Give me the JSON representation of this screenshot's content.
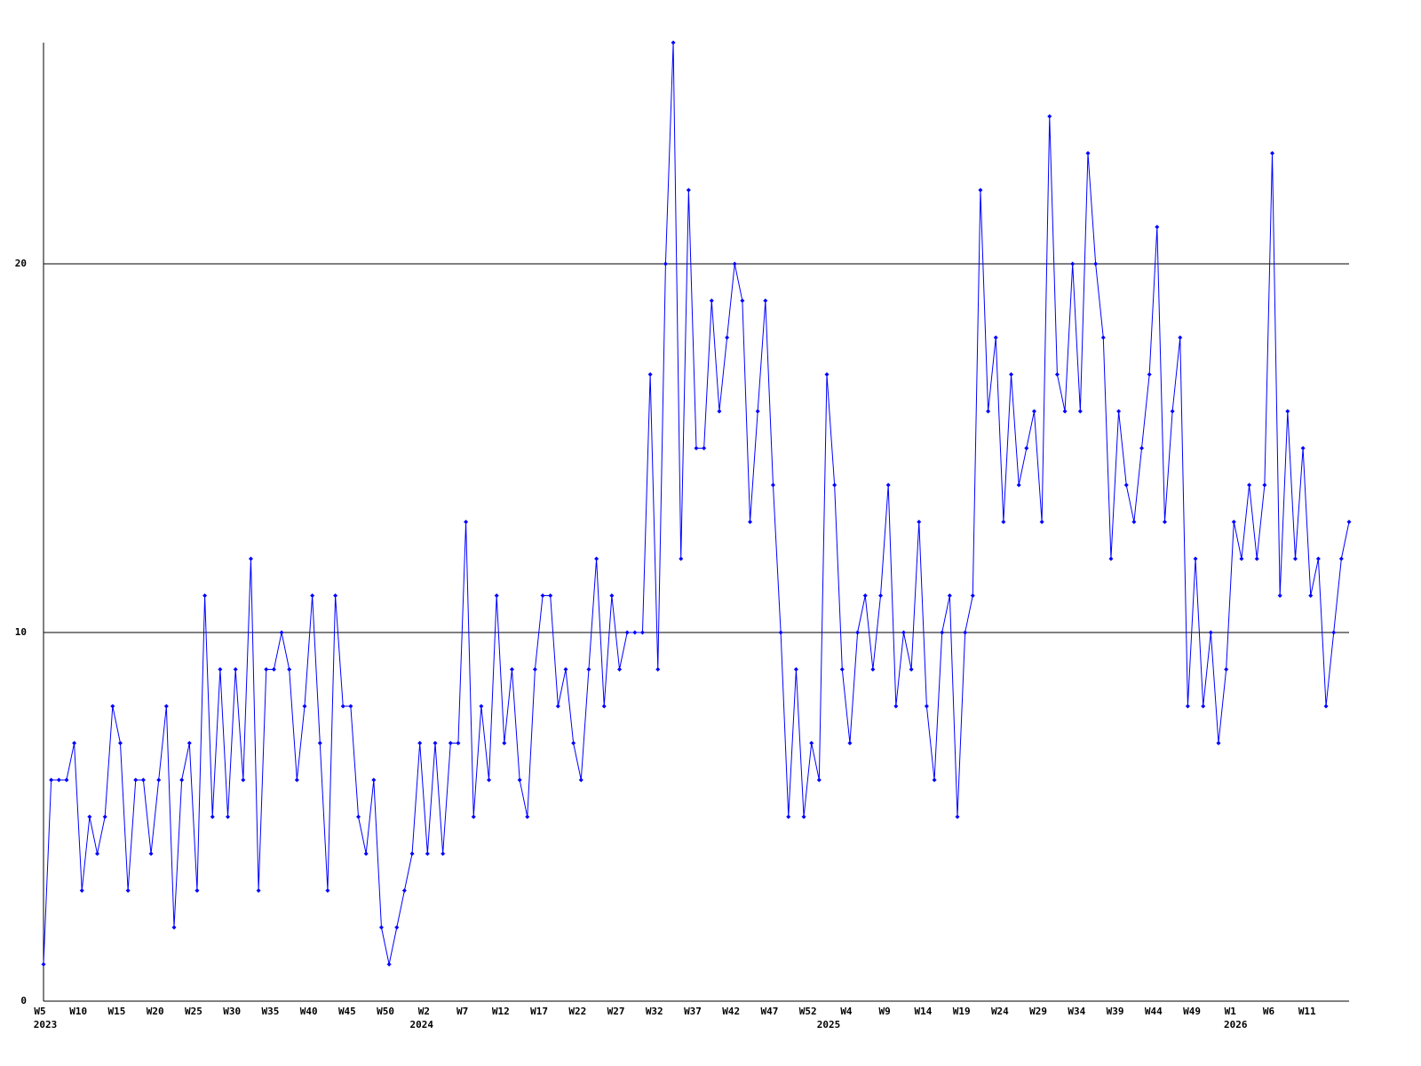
{
  "chart_data": {
    "type": "line",
    "color": "#0000ff",
    "grid": true,
    "ylim": [
      0,
      26
    ],
    "yticks": [
      0,
      10,
      20
    ],
    "categories": [
      "W5",
      null,
      null,
      null,
      null,
      "W10",
      null,
      null,
      null,
      null,
      "W15",
      null,
      null,
      null,
      null,
      "W20",
      null,
      null,
      null,
      null,
      "W25",
      null,
      null,
      null,
      null,
      "W30",
      null,
      null,
      null,
      null,
      "W35",
      null,
      null,
      null,
      null,
      "W40",
      null,
      null,
      null,
      null,
      "W45",
      null,
      null,
      null,
      null,
      "W50",
      null,
      null,
      null,
      null,
      "W2",
      null,
      null,
      null,
      null,
      "W7",
      null,
      null,
      null,
      null,
      "W12",
      null,
      null,
      null,
      null,
      "W17",
      null,
      null,
      null,
      null,
      "W22",
      null,
      null,
      null,
      null,
      "W27",
      null,
      null,
      null,
      null,
      "W32",
      null,
      null,
      null,
      null,
      "W37",
      null,
      null,
      null,
      null,
      "W42",
      null,
      null,
      null,
      null,
      "W47",
      null,
      null,
      null,
      null,
      "W52",
      null,
      null,
      null,
      null,
      "W4",
      null,
      null,
      null,
      null,
      "W9",
      null,
      null,
      null,
      null,
      "W14",
      null,
      null,
      null,
      null,
      "W19",
      null,
      null,
      null,
      null,
      "W24",
      null,
      null,
      null,
      null,
      "W29",
      null,
      null,
      null,
      null,
      "W34",
      null,
      null,
      null,
      null,
      "W39",
      null,
      null,
      null,
      null,
      "W44",
      null,
      null,
      null,
      null,
      "W49",
      null,
      null,
      null,
      null,
      "W1",
      null,
      null,
      null,
      null,
      "W6",
      null,
      null,
      null,
      null,
      "W11",
      null,
      null,
      null,
      null,
      null
    ],
    "year_labels": [
      "2023",
      null,
      null,
      null,
      null,
      null,
      null,
      null,
      null,
      null,
      null,
      null,
      null,
      null,
      null,
      null,
      null,
      null,
      null,
      null,
      null,
      null,
      null,
      null,
      null,
      null,
      null,
      null,
      null,
      null,
      null,
      null,
      null,
      null,
      null,
      null,
      null,
      null,
      null,
      null,
      null,
      null,
      null,
      null,
      null,
      null,
      null,
      null,
      null,
      "2024",
      null,
      null,
      null,
      null,
      null,
      null,
      null,
      null,
      null,
      null,
      null,
      null,
      null,
      null,
      null,
      null,
      null,
      null,
      null,
      null,
      null,
      null,
      null,
      null,
      null,
      null,
      null,
      null,
      null,
      null,
      null,
      null,
      null,
      null,
      null,
      null,
      null,
      null,
      null,
      null,
      null,
      null,
      null,
      null,
      null,
      null,
      null,
      null,
      null,
      null,
      null,
      null,
      "2025",
      null,
      null,
      null,
      null,
      null,
      null,
      null,
      null,
      null,
      null,
      null,
      null,
      null,
      null,
      null,
      null,
      null,
      null,
      null,
      null,
      null,
      null,
      null,
      null,
      null,
      null,
      null,
      null,
      null,
      null,
      null,
      null,
      null,
      null,
      null,
      null,
      null,
      null,
      null,
      null,
      null,
      null,
      null,
      null,
      null,
      null,
      null,
      null,
      null,
      null,
      null,
      null,
      "2026",
      null,
      null,
      null,
      null,
      null,
      null,
      null,
      null,
      null,
      null,
      null,
      null,
      null,
      null,
      null
    ],
    "values": [
      1,
      6,
      6,
      6,
      7,
      3,
      5,
      4,
      5,
      8,
      7,
      3,
      6,
      6,
      4,
      6,
      8,
      2,
      6,
      7,
      3,
      11,
      5,
      9,
      5,
      9,
      6,
      12,
      3,
      9,
      9,
      10,
      9,
      6,
      8,
      11,
      7,
      3,
      11,
      8,
      8,
      5,
      4,
      6,
      2,
      1,
      2,
      3,
      4,
      7,
      4,
      7,
      4,
      7,
      7,
      13,
      5,
      8,
      6,
      11,
      7,
      9,
      6,
      5,
      9,
      11,
      11,
      8,
      9,
      7,
      6,
      9,
      12,
      8,
      11,
      9,
      10,
      10,
      10,
      17,
      9,
      20,
      26,
      12,
      22,
      15,
      15,
      19,
      16,
      18,
      20,
      19,
      13,
      16,
      19,
      14,
      10,
      5,
      9,
      5,
      7,
      6,
      17,
      14,
      9,
      7,
      10,
      11,
      9,
      11,
      14,
      8,
      10,
      9,
      13,
      8,
      6,
      10,
      11,
      5,
      10,
      11,
      22,
      16,
      18,
      13,
      17,
      14,
      15,
      16,
      13,
      24,
      17,
      16,
      20,
      16,
      23,
      20,
      18,
      12,
      16,
      14,
      13,
      15,
      17,
      21,
      13,
      16,
      18,
      8,
      12,
      8,
      10,
      7,
      9,
      13,
      12,
      14,
      12,
      14,
      23,
      11,
      16,
      12,
      15,
      11,
      12,
      8,
      10,
      12,
      13
    ]
  }
}
